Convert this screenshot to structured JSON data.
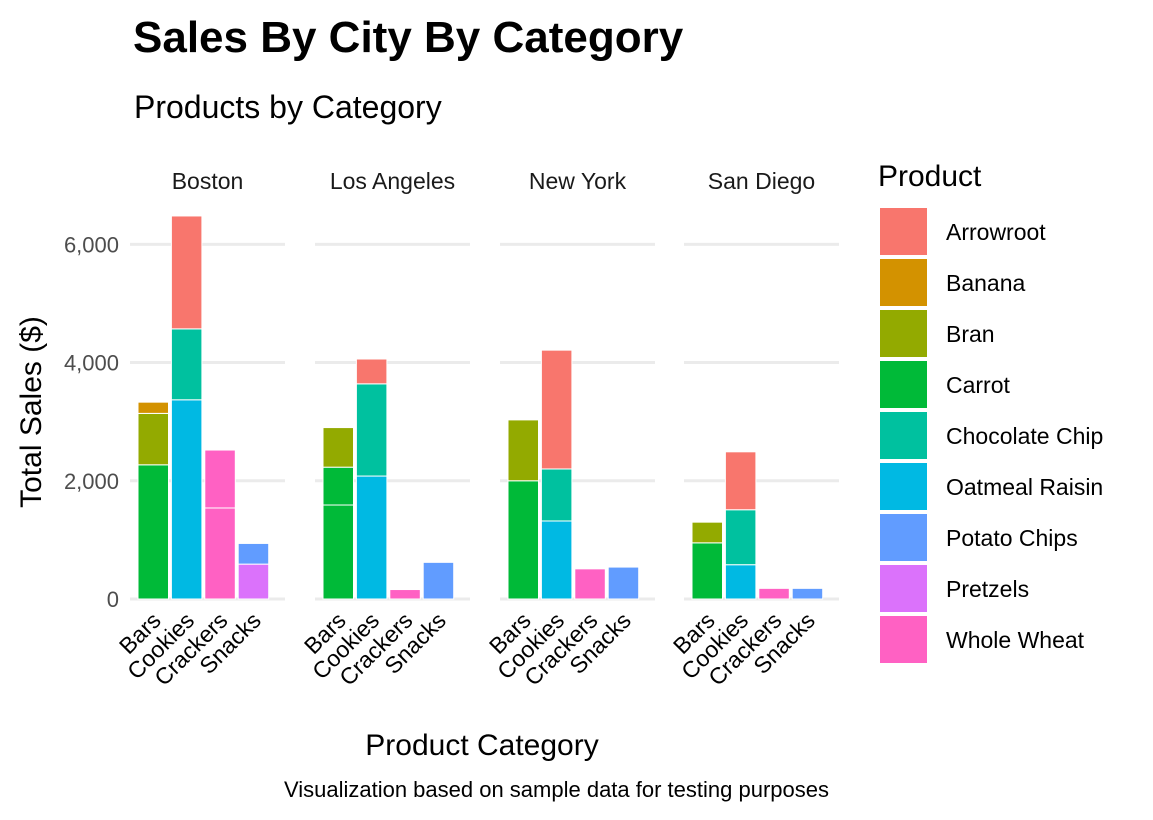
{
  "chart_data": {
    "type": "bar",
    "stacked": true,
    "faceted_by": "city",
    "title": "Sales By City By Category",
    "subtitle": "Products by Category",
    "xlabel": "Product Category",
    "ylabel": "Total Sales ($)",
    "caption": "Visualization based on sample data for testing purposes",
    "legend_title": "Product",
    "legend_position": "right",
    "grid": true,
    "ylim": [
      0,
      6750
    ],
    "y_ticks": [
      0,
      2000,
      4000,
      6000
    ],
    "y_tick_labels": [
      "0",
      "2,000",
      "4,000",
      "6,000"
    ],
    "categories": [
      "Bars",
      "Cookies",
      "Crackers",
      "Snacks"
    ],
    "products": [
      {
        "name": "Arrowroot",
        "color": "#F8766D"
      },
      {
        "name": "Banana",
        "color": "#D39200"
      },
      {
        "name": "Bran",
        "color": "#93AA00"
      },
      {
        "name": "Carrot",
        "color": "#00BA38"
      },
      {
        "name": "Chocolate Chip",
        "color": "#00C19F"
      },
      {
        "name": "Oatmeal Raisin",
        "color": "#00B9E3"
      },
      {
        "name": "Potato Chips",
        "color": "#619CFF"
      },
      {
        "name": "Pretzels",
        "color": "#DB72FB"
      },
      {
        "name": "Whole Wheat",
        "color": "#FF61C3"
      }
    ],
    "facets": [
      {
        "city": "Boston",
        "bars": [
          {
            "category": "Bars",
            "segments": [
              {
                "product": "Carrot",
                "value": 2270
              },
              {
                "product": "Bran",
                "value": 870
              },
              {
                "product": "Banana",
                "value": 190
              }
            ]
          },
          {
            "category": "Cookies",
            "segments": [
              {
                "product": "Oatmeal Raisin",
                "value": 3370
              },
              {
                "product": "Chocolate Chip",
                "value": 1200
              },
              {
                "product": "Arrowroot",
                "value": 1910
              }
            ]
          },
          {
            "category": "Crackers",
            "segments": [
              {
                "product": "Whole Wheat",
                "value": 1540
              },
              {
                "product": "Whole Wheat",
                "value": 980
              }
            ]
          },
          {
            "category": "Snacks",
            "segments": [
              {
                "product": "Pretzels",
                "value": 590
              },
              {
                "product": "Potato Chips",
                "value": 350
              }
            ]
          }
        ]
      },
      {
        "city": "Los Angeles",
        "bars": [
          {
            "category": "Bars",
            "segments": [
              {
                "product": "Carrot",
                "value": 1590
              },
              {
                "product": "Carrot",
                "value": 640
              },
              {
                "product": "Bran",
                "value": 670
              }
            ]
          },
          {
            "category": "Cookies",
            "segments": [
              {
                "product": "Oatmeal Raisin",
                "value": 2080
              },
              {
                "product": "Chocolate Chip",
                "value": 1560
              },
              {
                "product": "Arrowroot",
                "value": 420
              }
            ]
          },
          {
            "category": "Crackers",
            "segments": [
              {
                "product": "Whole Wheat",
                "value": 160
              }
            ]
          },
          {
            "category": "Snacks",
            "segments": [
              {
                "product": "Potato Chips",
                "value": 620
              }
            ]
          }
        ]
      },
      {
        "city": "New York",
        "bars": [
          {
            "category": "Bars",
            "segments": [
              {
                "product": "Carrot",
                "value": 2000
              },
              {
                "product": "Bran",
                "value": 1030
              }
            ]
          },
          {
            "category": "Cookies",
            "segments": [
              {
                "product": "Oatmeal Raisin",
                "value": 1320
              },
              {
                "product": "Chocolate Chip",
                "value": 880
              },
              {
                "product": "Arrowroot",
                "value": 2010
              }
            ]
          },
          {
            "category": "Crackers",
            "segments": [
              {
                "product": "Whole Wheat",
                "value": 510
              }
            ]
          },
          {
            "category": "Snacks",
            "segments": [
              {
                "product": "Potato Chips",
                "value": 540
              }
            ]
          }
        ]
      },
      {
        "city": "San Diego",
        "bars": [
          {
            "category": "Bars",
            "segments": [
              {
                "product": "Carrot",
                "value": 950
              },
              {
                "product": "Bran",
                "value": 350
              }
            ]
          },
          {
            "category": "Cookies",
            "segments": [
              {
                "product": "Oatmeal Raisin",
                "value": 580
              },
              {
                "product": "Chocolate Chip",
                "value": 930
              },
              {
                "product": "Arrowroot",
                "value": 980
              }
            ]
          },
          {
            "category": "Crackers",
            "segments": [
              {
                "product": "Whole Wheat",
                "value": 180
              }
            ]
          },
          {
            "category": "Snacks",
            "segments": [
              {
                "product": "Potato Chips",
                "value": 180
              }
            ]
          }
        ]
      }
    ]
  }
}
